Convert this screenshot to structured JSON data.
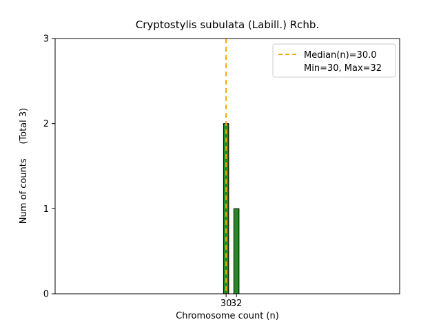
{
  "figure": {
    "title": "Cryptostylis subulata (Labill.) Rchb.",
    "xlabel": "Chromosome count (n)",
    "ylabel": "Num of counts     (Total 3)",
    "legend": {
      "entries": [
        {
          "label": "Median(n)=30.0",
          "handle": "dashed-line",
          "color": "#ffa500"
        },
        {
          "label": "Min=30, Max=32",
          "handle": "none"
        }
      ]
    }
  },
  "chart_data": {
    "type": "bar",
    "title": "Cryptostylis subulata (Labill.) Rchb.",
    "xlabel": "Chromosome count (n)",
    "ylabel": "Num of counts     (Total 3)",
    "categories": [
      30,
      32
    ],
    "values": [
      2,
      1
    ],
    "bar_color": "#228b22",
    "bar_edge_color": "#000000",
    "bar_width": 1.0,
    "median_line": {
      "x": 30.0,
      "color": "#ffa500",
      "style": "dashed",
      "label": "Median(n)=30.0"
    },
    "stats": {
      "median": 30.0,
      "min": 30,
      "max": 32,
      "total": 3
    },
    "xlim": [
      -3.1,
      63.6
    ],
    "ylim": [
      0,
      3
    ],
    "xticks": [
      30,
      32
    ],
    "yticks": [
      0,
      1,
      2,
      3
    ],
    "legend_position": "upper right",
    "grid": false
  }
}
